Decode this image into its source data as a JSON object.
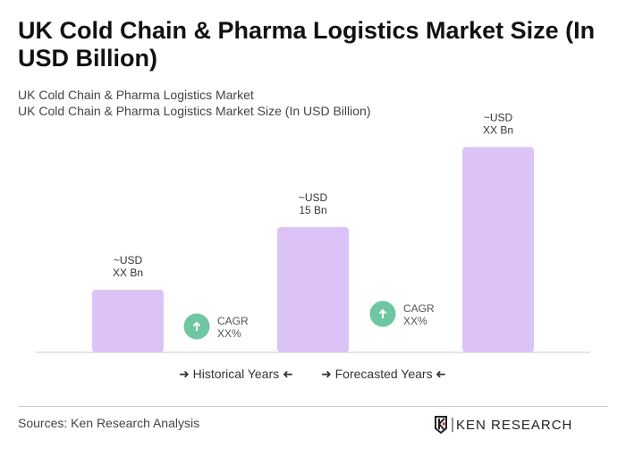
{
  "title": "UK Cold Chain & Pharma Logistics Market Size (In USD Billion)",
  "subtitle1": "UK Cold Chain & Pharma Logistics Market",
  "subtitle2": "UK Cold Chain & Pharma Logistics Market Size (In USD Billion)",
  "chart_data": {
    "type": "bar",
    "categories": [
      "",
      "",
      ""
    ],
    "values": [
      7.5,
      15,
      24.6
    ],
    "data_labels": [
      [
        "~USD",
        "XX Bn"
      ],
      [
        "~USD",
        "15 Bn"
      ],
      [
        "~USD",
        "XX Bn"
      ]
    ],
    "cagr_labels": [
      [
        "CAGR",
        "XX%"
      ],
      [
        "CAGR",
        "XX%"
      ]
    ],
    "bar_color": "#dcc3f7",
    "cagr_color": "#6fc6a3",
    "grid": false,
    "legend": [
      "Historical Years",
      "Forecasted Years"
    ],
    "legend_placement": "bottom"
  },
  "sources": "Sources: Ken Research Analysis",
  "logo_text": "KEN RESEARCH"
}
